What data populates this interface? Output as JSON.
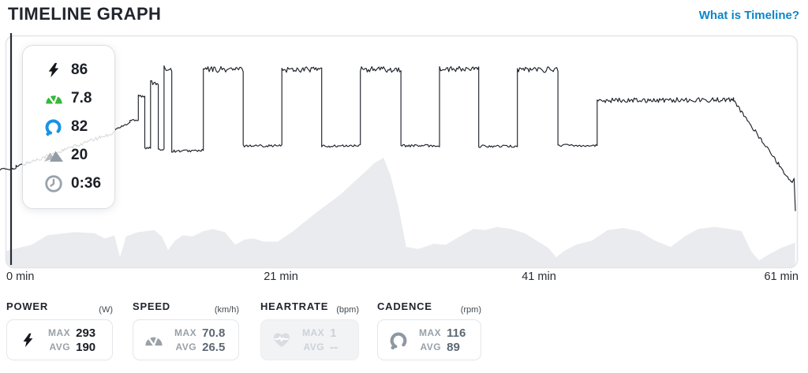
{
  "header": {
    "title": "TIMELINE GRAPH",
    "link": "What is Timeline?"
  },
  "tooltip": {
    "rows": [
      {
        "icon": "power-bolt-icon",
        "value": "86"
      },
      {
        "icon": "speed-gauge-icon",
        "value": "7.8"
      },
      {
        "icon": "cadence-icon",
        "value": "82"
      },
      {
        "icon": "elevation-mountain-icon",
        "value": "20"
      },
      {
        "icon": "time-clock-icon",
        "value": "0:36"
      }
    ]
  },
  "x_axis": {
    "labels": [
      "0 min",
      "21 min",
      "41 min",
      "61 min"
    ]
  },
  "stats": [
    {
      "name": "POWER",
      "unit": "(W)",
      "max_label": "MAX",
      "avg_label": "AVG",
      "max": "293",
      "avg": "190",
      "icon": "power-bolt-icon",
      "state": "active"
    },
    {
      "name": "SPEED",
      "unit": "(km/h)",
      "max_label": "MAX",
      "avg_label": "AVG",
      "max": "70.8",
      "avg": "26.5",
      "icon": "speed-gauge-icon",
      "state": "normal"
    },
    {
      "name": "HEARTRATE",
      "unit": "(bpm)",
      "max_label": "MAX",
      "avg_label": "AVG",
      "max": "1",
      "avg": "--",
      "icon": "heart-icon",
      "state": "disabled"
    },
    {
      "name": "CADENCE",
      "unit": "(rpm)",
      "max_label": "MAX",
      "avg_label": "AVG",
      "max": "116",
      "avg": "89",
      "icon": "cadence-icon",
      "state": "normal"
    }
  ],
  "colors": {
    "title": "#21252d",
    "link_blue": "#0b86c9",
    "power_line": "#1e232b",
    "elevation_fill": "#e9ebee",
    "plot_border": "#e3e5e7",
    "cursor_line": "#262c35",
    "icon_green": "#35b83a",
    "icon_blue": "#1793e6",
    "icon_gray": "#9aa2ab",
    "icon_dark": "#15181d"
  },
  "chart_data": {
    "type": "line",
    "title": "Timeline Graph",
    "x_unit": "min",
    "x_range_min": [
      0,
      61
    ],
    "x_ticks": [
      "0 min",
      "21 min",
      "41 min",
      "61 min"
    ],
    "grid": false,
    "legend": "none",
    "cursor": {
      "time_label": "0:36",
      "power": 86,
      "speed": 7.8,
      "cadence": 82,
      "elevation": 20
    },
    "series": [
      {
        "name": "power",
        "unit": "W",
        "style": "line",
        "visible_range_watts": [
          0,
          300
        ],
        "segments_t0_t1_w0_w1_noise": [
          [
            -0.85,
            0.45,
            85,
            86,
            2
          ],
          [
            0.45,
            8.1,
            89,
            146,
            3
          ],
          [
            8.1,
            9.3,
            150,
            162,
            2
          ],
          [
            9.3,
            9.95,
            166,
            167,
            2
          ],
          [
            9.95,
            10.45,
            208,
            206,
            4
          ],
          [
            10.45,
            10.9,
            120,
            120,
            2
          ],
          [
            10.9,
            11.5,
            229,
            228,
            4
          ],
          [
            11.5,
            11.95,
            117,
            117,
            2
          ],
          [
            11.95,
            12.55,
            252,
            250,
            4
          ],
          [
            12.55,
            15.0,
            115,
            116,
            2
          ],
          [
            15.0,
            18.1,
            250,
            250,
            5
          ],
          [
            18.1,
            21.1,
            124,
            124,
            2
          ],
          [
            21.1,
            24.2,
            250,
            250,
            5
          ],
          [
            24.2,
            27.2,
            123,
            124,
            2
          ],
          [
            27.2,
            30.35,
            250,
            250,
            5
          ],
          [
            30.35,
            33.35,
            124,
            124,
            2
          ],
          [
            33.35,
            36.4,
            250,
            250,
            5
          ],
          [
            36.4,
            39.4,
            123,
            123,
            2
          ],
          [
            39.4,
            42.55,
            250,
            250,
            5
          ],
          [
            42.55,
            45.6,
            125,
            124,
            2
          ],
          [
            45.6,
            56.2,
            199,
            200,
            4
          ],
          [
            56.2,
            60.75,
            198,
            62,
            3
          ],
          [
            60.75,
            60.9,
            64,
            70,
            1
          ],
          [
            60.9,
            61.0,
            70,
            16,
            0
          ]
        ]
      },
      {
        "name": "elevation",
        "style": "area",
        "unit": "relative_height_0_100",
        "points_t_h": [
          [
            -0.37,
            11
          ],
          [
            1.66,
            17
          ],
          [
            2.88,
            26
          ],
          [
            5.0,
            29
          ],
          [
            6.56,
            28
          ],
          [
            7.36,
            23
          ],
          [
            8.09,
            26
          ],
          [
            8.52,
            5
          ],
          [
            9.0,
            25
          ],
          [
            9.93,
            29
          ],
          [
            11.2,
            31
          ],
          [
            11.77,
            25
          ],
          [
            12.26,
            12
          ],
          [
            12.8,
            21
          ],
          [
            13.4,
            26
          ],
          [
            14.2,
            25
          ],
          [
            15.0,
            30
          ],
          [
            15.75,
            32
          ],
          [
            16.67,
            29
          ],
          [
            17.47,
            17
          ],
          [
            18.2,
            22
          ],
          [
            18.9,
            23
          ],
          [
            19.7,
            20
          ],
          [
            20.78,
            20
          ],
          [
            21.88,
            29
          ],
          [
            23.7,
            47
          ],
          [
            25.56,
            64
          ],
          [
            27.09,
            81
          ],
          [
            28.3,
            95
          ],
          [
            29.0,
            100
          ],
          [
            29.55,
            83
          ],
          [
            30.16,
            53
          ],
          [
            30.77,
            15
          ],
          [
            31.7,
            13
          ],
          [
            32.9,
            18
          ],
          [
            33.84,
            17
          ],
          [
            34.94,
            25
          ],
          [
            35.98,
            32
          ],
          [
            36.9,
            31
          ],
          [
            37.82,
            34
          ],
          [
            38.92,
            32
          ],
          [
            39.97,
            28
          ],
          [
            40.89,
            21
          ],
          [
            41.81,
            14
          ],
          [
            42.42,
            5
          ],
          [
            43.03,
            11
          ],
          [
            43.95,
            17
          ],
          [
            45.18,
            21
          ],
          [
            46.41,
            31
          ],
          [
            47.63,
            33
          ],
          [
            48.86,
            30
          ],
          [
            50.08,
            21
          ],
          [
            51.31,
            15
          ],
          [
            52.41,
            25
          ],
          [
            53.45,
            32
          ],
          [
            54.68,
            34
          ],
          [
            55.9,
            32
          ],
          [
            56.82,
            30
          ],
          [
            57.56,
            11
          ],
          [
            58.17,
            2
          ],
          [
            58.97,
            8
          ],
          [
            59.89,
            14
          ],
          [
            60.98,
            19
          ]
        ]
      }
    ],
    "summary": {
      "power_max_w": 293,
      "power_avg_w": 190,
      "speed_max_kmh": 70.8,
      "speed_avg_kmh": 26.5,
      "hr_max_bpm": 1,
      "hr_avg_bpm": null,
      "cadence_max_rpm": 116,
      "cadence_avg_rpm": 89
    }
  }
}
